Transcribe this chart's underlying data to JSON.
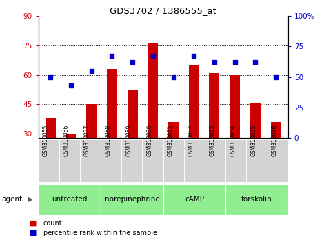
{
  "title": "GDS3702 / 1386555_at",
  "samples": [
    "GSM310055",
    "GSM310056",
    "GSM310057",
    "GSM310058",
    "GSM310059",
    "GSM310060",
    "GSM310061",
    "GSM310062",
    "GSM310063",
    "GSM310064",
    "GSM310065",
    "GSM310066"
  ],
  "counts": [
    38,
    30,
    45,
    63,
    52,
    76,
    36,
    65,
    61,
    60,
    46,
    36
  ],
  "percentiles": [
    50,
    43,
    55,
    67,
    62,
    67,
    50,
    67,
    62,
    62,
    62,
    50
  ],
  "groups": [
    {
      "label": "untreated",
      "start": 0,
      "end": 3,
      "color": "#90EE90"
    },
    {
      "label": "norepinephrine",
      "start": 3,
      "end": 6,
      "color": "#90EE90"
    },
    {
      "label": "cAMP",
      "start": 6,
      "end": 9,
      "color": "#90EE90"
    },
    {
      "label": "forskolin",
      "start": 9,
      "end": 12,
      "color": "#90EE90"
    }
  ],
  "bar_color": "#CC0000",
  "dot_color": "#0000CC",
  "ylim_left": [
    28,
    90
  ],
  "ylim_right": [
    0,
    100
  ],
  "yticks_left": [
    30,
    45,
    60,
    75,
    90
  ],
  "yticks_right": [
    0,
    25,
    50,
    75,
    100
  ],
  "ytick_labels_right": [
    "0",
    "25",
    "50",
    "75",
    "100%"
  ],
  "grid_values": [
    45,
    60,
    75
  ],
  "background_color": "#ffffff",
  "left_yaxis_color": "#CC0000",
  "right_yaxis_color": "#0000CC",
  "legend_items": [
    "count",
    "percentile rank within the sample"
  ],
  "agent_label": "agent",
  "cell_bg": "#D3D3D3"
}
